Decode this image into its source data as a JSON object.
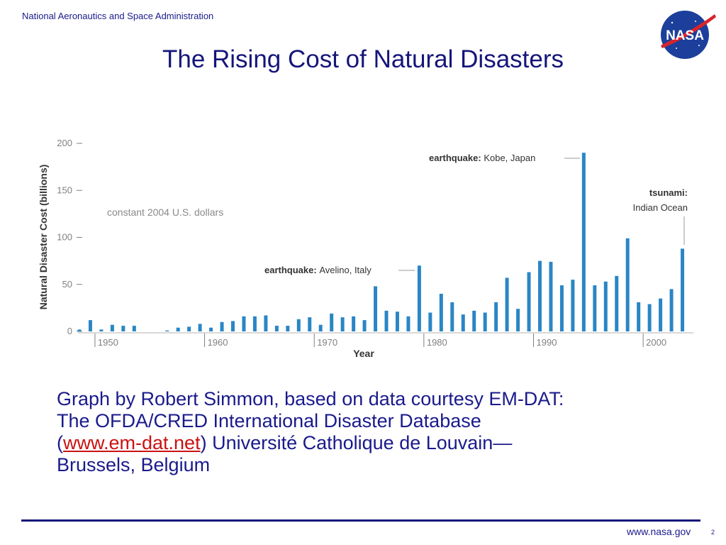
{
  "header": {
    "agency": "National Aeronautics and Space Administration",
    "title": "The Rising Cost of Natural Disasters",
    "logo_text": "NASA"
  },
  "chart_data": {
    "type": "bar",
    "title": "",
    "xlabel": "Year",
    "ylabel": "Natural Disaster Cost (billions)",
    "ylim": [
      0,
      200
    ],
    "xlim": [
      1948,
      2004
    ],
    "yticks": [
      0,
      50,
      100,
      150,
      200
    ],
    "xticks": [
      1950,
      1960,
      1970,
      1980,
      1990,
      2000
    ],
    "note": "constant 2004 U.S. dollars",
    "grid": false,
    "color": "#2a86c5",
    "x": [
      1948,
      1949,
      1950,
      1951,
      1952,
      1953,
      1954,
      1955,
      1956,
      1957,
      1958,
      1959,
      1960,
      1961,
      1962,
      1963,
      1964,
      1965,
      1966,
      1967,
      1968,
      1969,
      1970,
      1971,
      1972,
      1973,
      1974,
      1975,
      1976,
      1977,
      1978,
      1979,
      1980,
      1981,
      1982,
      1983,
      1984,
      1985,
      1986,
      1987,
      1988,
      1989,
      1990,
      1991,
      1992,
      1993,
      1994,
      1995,
      1996,
      1997,
      1998,
      1999,
      2000,
      2001,
      2002,
      2003,
      2004
    ],
    "values": [
      2,
      12,
      2,
      7,
      6,
      6,
      0,
      0,
      1,
      4,
      5,
      8,
      4,
      10,
      11,
      16,
      16,
      17,
      6,
      6,
      13,
      15,
      7,
      19,
      15,
      16,
      12,
      48,
      22,
      21,
      16,
      70,
      20,
      40,
      31,
      18,
      22,
      20,
      31,
      57,
      24,
      63,
      75,
      74,
      49,
      55,
      190,
      49,
      53,
      59,
      99,
      31,
      29,
      35,
      45,
      88,
      0
    ],
    "annotations": [
      {
        "bold": "earthquake:",
        "text": "Kobe, Japan",
        "x": 1995
      },
      {
        "bold": "tsunami:",
        "text": "Indian Ocean",
        "x": 2004
      },
      {
        "bold": "earthquake:",
        "text": "Avelino, Italy",
        "x": 1980
      }
    ]
  },
  "caption": {
    "line1": "Graph by Robert Simmon, based on data courtesy EM-DAT:",
    "line2": "The OFDA/CRED International Disaster Database",
    "open_paren": "(",
    "link": "www.em-dat.net",
    "line3_rest": ") Université Catholique de Louvain—",
    "line4": "Brussels, Belgium"
  },
  "footer": {
    "url": "www.nasa.gov",
    "page": "2"
  }
}
